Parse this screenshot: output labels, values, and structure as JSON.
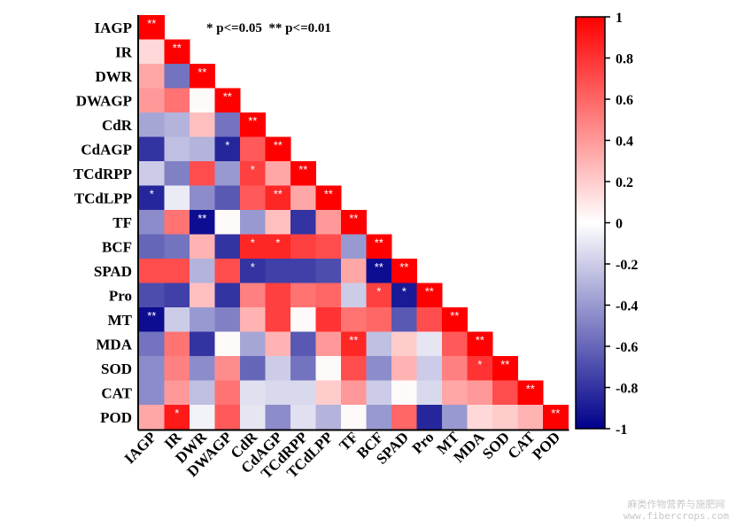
{
  "chart_data": {
    "type": "heatmap",
    "subtype": "lower-triangle correlation matrix",
    "variables": [
      "IAGP",
      "IR",
      "DWR",
      "DWAGP",
      "CdR",
      "CdAGP",
      "TCdRPP",
      "TCdLPP",
      "TF",
      "BCF",
      "SPAD",
      "Pro",
      "MT",
      "MDA",
      "SOD",
      "CAT",
      "POD"
    ],
    "matrix": [
      [
        1.0
      ],
      [
        0.15,
        1.0
      ],
      [
        0.35,
        -0.55,
        1.0
      ],
      [
        0.4,
        0.55,
        0.02,
        1.0
      ],
      [
        -0.35,
        -0.3,
        0.25,
        -0.55,
        1.0
      ],
      [
        -0.8,
        -0.25,
        -0.3,
        -0.85,
        0.65,
        1.0
      ],
      [
        -0.2,
        -0.5,
        0.7,
        -0.4,
        0.75,
        0.35,
        1.0
      ],
      [
        -0.85,
        -0.08,
        -0.45,
        -0.65,
        0.65,
        0.85,
        0.35,
        1.0
      ],
      [
        -0.45,
        0.55,
        -0.95,
        0.02,
        -0.4,
        0.25,
        -0.8,
        0.4,
        1.0
      ],
      [
        -0.6,
        -0.55,
        0.3,
        -0.8,
        0.85,
        0.85,
        0.75,
        0.7,
        -0.4,
        1.0
      ],
      [
        0.7,
        0.7,
        -0.3,
        0.7,
        -0.8,
        -0.75,
        -0.75,
        -0.7,
        0.35,
        -0.95,
        1.0
      ],
      [
        -0.7,
        -0.75,
        0.25,
        -0.8,
        0.5,
        0.75,
        0.55,
        0.6,
        -0.2,
        0.75,
        -0.9,
        1.0
      ],
      [
        -0.95,
        -0.2,
        -0.4,
        -0.5,
        0.3,
        0.75,
        0.02,
        0.8,
        0.55,
        0.6,
        -0.65,
        0.7,
        1.0
      ],
      [
        -0.55,
        0.55,
        -0.8,
        0.02,
        -0.35,
        0.3,
        -0.65,
        0.4,
        0.85,
        -0.25,
        0.2,
        -0.1,
        0.65,
        1.0
      ],
      [
        -0.45,
        0.5,
        -0.45,
        0.45,
        -0.6,
        -0.2,
        -0.55,
        0.02,
        0.7,
        -0.45,
        0.3,
        -0.2,
        0.5,
        0.8,
        1.0
      ],
      [
        -0.45,
        0.4,
        -0.25,
        0.55,
        -0.12,
        -0.15,
        -0.15,
        0.2,
        0.4,
        -0.2,
        0.02,
        -0.15,
        0.35,
        0.4,
        0.7,
        1.0
      ],
      [
        0.35,
        0.9,
        -0.05,
        0.65,
        -0.1,
        -0.45,
        -0.12,
        -0.3,
        0.02,
        -0.4,
        0.6,
        -0.85,
        -0.4,
        0.15,
        0.2,
        0.3,
        1.0
      ]
    ],
    "significance": [
      [
        "**"
      ],
      [
        "",
        "**"
      ],
      [
        "",
        "",
        "**"
      ],
      [
        "",
        "",
        "",
        "**"
      ],
      [
        "",
        "",
        "",
        "",
        "**"
      ],
      [
        "",
        "",
        "",
        "*",
        "",
        "**"
      ],
      [
        "",
        "",
        "",
        "",
        "*",
        "",
        "**"
      ],
      [
        "*",
        "",
        "",
        "",
        "",
        "**",
        "",
        "**"
      ],
      [
        "",
        "",
        "**",
        "",
        "",
        "",
        "",
        "",
        "**"
      ],
      [
        "",
        "",
        "",
        "",
        "*",
        "*",
        "",
        "",
        "",
        "**"
      ],
      [
        "",
        "",
        "",
        "",
        "*",
        "",
        "",
        "",
        "",
        "**",
        "**"
      ],
      [
        "",
        "",
        "",
        "",
        "",
        "",
        "",
        "",
        "",
        "*",
        "*",
        "**"
      ],
      [
        "**",
        "",
        "",
        "",
        "",
        "",
        "",
        "",
        "",
        "",
        "",
        "",
        "**"
      ],
      [
        "",
        "",
        "",
        "",
        "",
        "",
        "",
        "",
        "**",
        "",
        "",
        "",
        "",
        "**"
      ],
      [
        "",
        "",
        "",
        "",
        "",
        "",
        "",
        "",
        "",
        "",
        "",
        "",
        "",
        "*",
        "**"
      ],
      [
        "",
        "",
        "",
        "",
        "",
        "",
        "",
        "",
        "",
        "",
        "",
        "",
        "",
        "",
        "",
        "**"
      ],
      [
        "",
        "*",
        "",
        "",
        "",
        "",
        "",
        "",
        "",
        "",
        "",
        "",
        "",
        "",
        "",
        "",
        "**"
      ]
    ],
    "legend_note": "* p<=0.05  ** p<=0.01",
    "colorbar": {
      "range": [
        -1,
        1
      ],
      "ticks": [
        "1",
        "0.8",
        "0.6",
        "0.4",
        "0.2",
        "0",
        "-0.2",
        "-0.4",
        "-0.6",
        "-0.8",
        "-1"
      ],
      "tick_values": [
        1,
        0.8,
        0.6,
        0.4,
        0.2,
        0,
        -0.2,
        -0.4,
        -0.6,
        -0.8,
        -1
      ],
      "colors": {
        "high": "#ff0000",
        "mid": "#ffffff",
        "low": "#00008b"
      },
      "placement": "right"
    },
    "title": "",
    "xlabel": "",
    "ylabel": ""
  },
  "watermark": {
    "line1": "麻类作物营养与施肥网",
    "line2": "www.fibercrops.com"
  }
}
